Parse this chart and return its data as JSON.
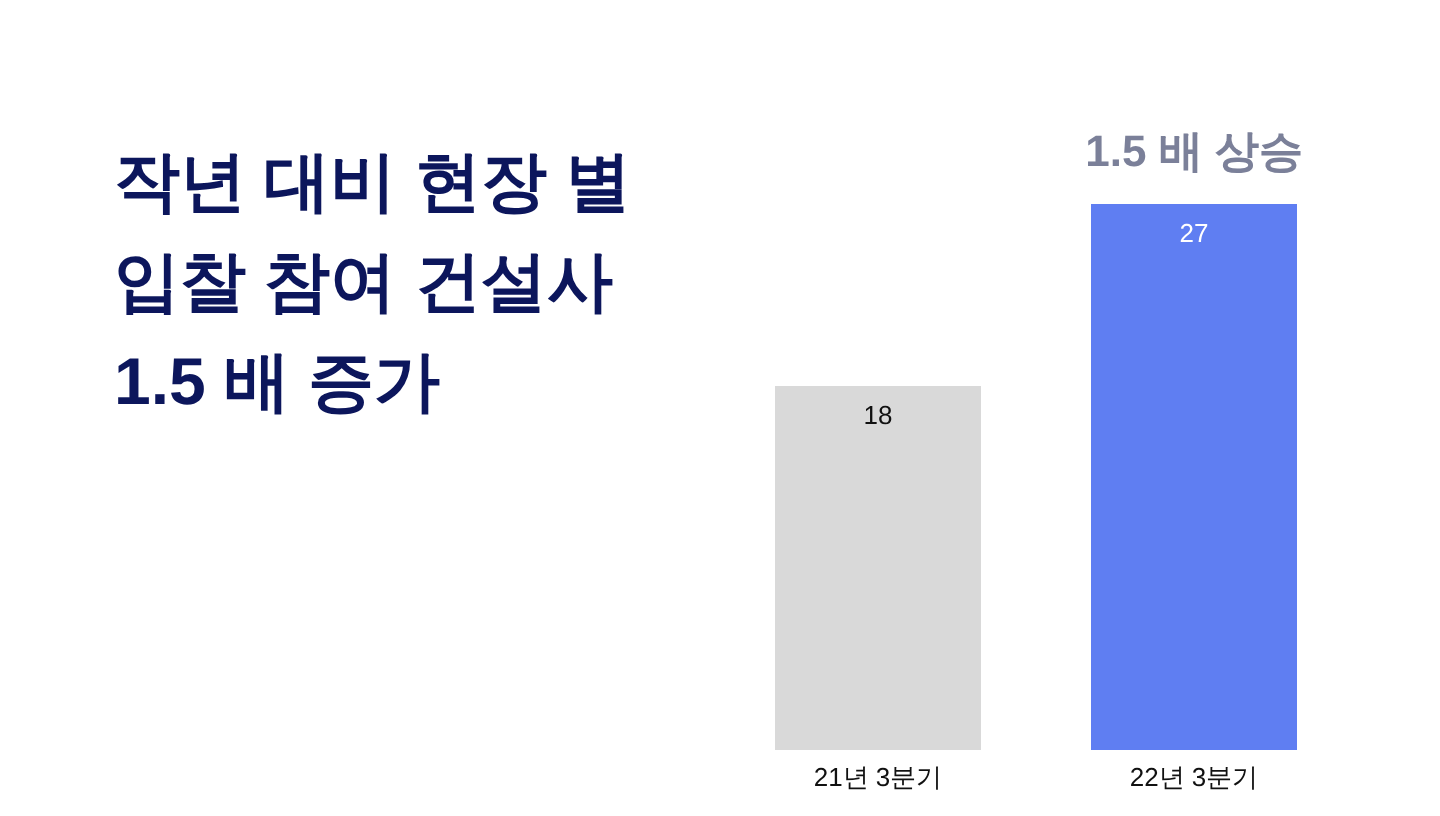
{
  "chart_data": {
    "type": "bar",
    "title": "작년 대비 현장 별\n입찰 참여 건설사\n1.5 배 증가",
    "categories": [
      "21년 3분기",
      "22년 3분기"
    ],
    "values": [
      18,
      27
    ],
    "colors": [
      "#d9d9d9",
      "#5f7ef2"
    ],
    "data_labels": true,
    "annotations": [
      {
        "text": "1.5 배 상승",
        "x": "22년 3분기",
        "y": 27
      }
    ]
  }
}
